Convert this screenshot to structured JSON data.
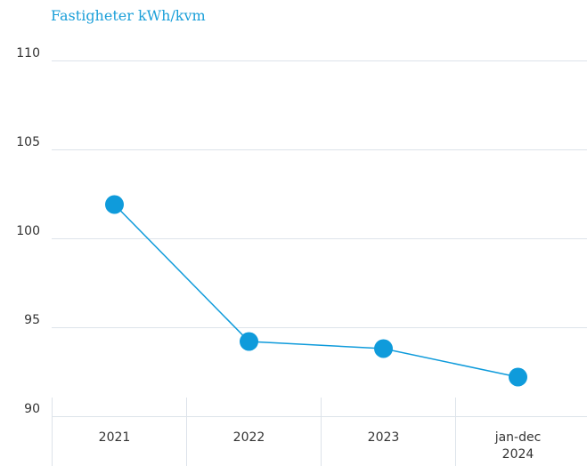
{
  "chart_data": {
    "type": "line",
    "title": "Fastigheter kWh/kvm",
    "categories": [
      "2021",
      "2022",
      "2023",
      "jan-dec 2024"
    ],
    "values": [
      101.9,
      94.2,
      93.8,
      92.2
    ],
    "color": "#0f9bdb",
    "ylim": [
      90,
      110
    ],
    "yticks": [
      90,
      95,
      100,
      105,
      110
    ],
    "grid": true
  }
}
